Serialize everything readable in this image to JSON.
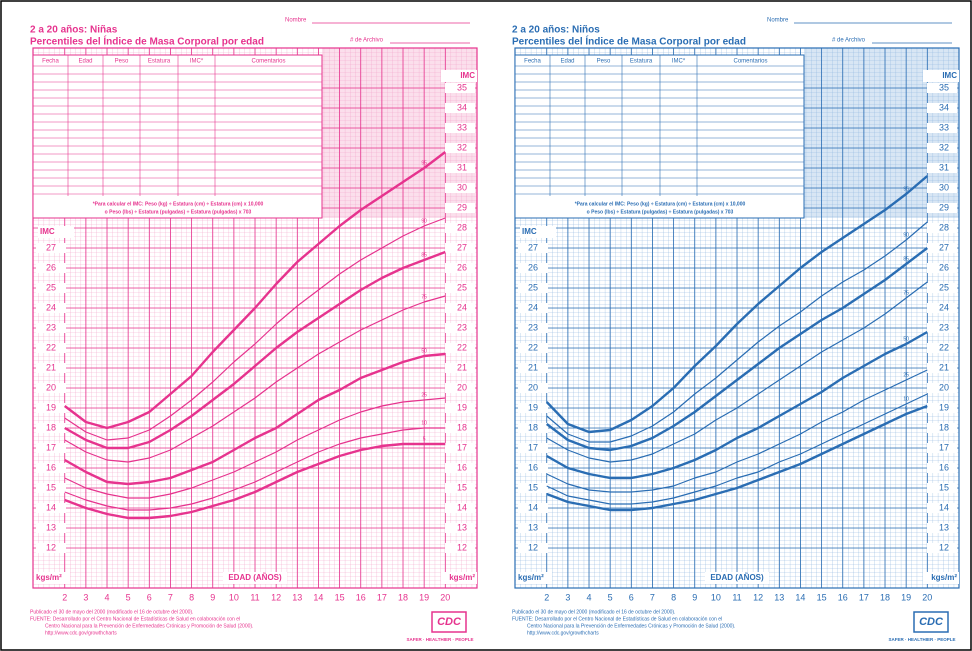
{
  "chart_data": [
    {
      "type": "line",
      "title": "2 a 20 años: Niñas",
      "subtitle": "Percentiles del Índice de Masa Corporal por edad",
      "name_field": "Nombre",
      "file_field": "# de Archivo",
      "table_headers": [
        "Fecha",
        "Edad",
        "Peso",
        "Estatura",
        "IMC*",
        "Comentarios"
      ],
      "formula": [
        "*Para calcular el IMC: Peso (kg) ÷ Estatura (cm) ÷ Estatura (cm) x 10,000",
        "o Peso (lbs) ÷ Estatura (pulgadas) ÷ Estatura (pulgadas) x 703"
      ],
      "y_label": "IMC",
      "y_unit": "kgs/m²",
      "x_label": "EDAD (AÑOS)",
      "footer": [
        "Publicado el 30 de mayo del 2000 (modificado el 16 de octubre del 2000).",
        "FUENTE: Desarrollado por el Centro Nacional de Estadísticas de Salud en colaboración con el",
        "Centro Nacional para la Prevención de Enfermedades Crónicas y Promoción de Salud (2000).",
        "http://www.cdc.gov/growthcharts"
      ],
      "logo": "CDC",
      "logo_tagline": "SAFER · HEALTHIER · PEOPLE",
      "color": "#e6338e",
      "grid_color": "#f3a3c9",
      "x": [
        2,
        3,
        4,
        5,
        6,
        7,
        8,
        9,
        10,
        11,
        12,
        13,
        14,
        15,
        16,
        17,
        18,
        19,
        20
      ],
      "xlim": [
        0.5,
        21.5
      ],
      "xticks": [
        2,
        3,
        4,
        5,
        6,
        7,
        8,
        9,
        10,
        11,
        12,
        13,
        14,
        15,
        16,
        17,
        18,
        19,
        20
      ],
      "ylim": [
        10,
        37
      ],
      "yticks": [
        12,
        13,
        14,
        15,
        16,
        17,
        18,
        19,
        20,
        21,
        22,
        23,
        24,
        25,
        26,
        27,
        28,
        29,
        30,
        31,
        32,
        33,
        34,
        35
      ],
      "series": [
        {
          "name": "95",
          "width": 2.4,
          "values": [
            19.1,
            18.3,
            18.0,
            18.3,
            18.8,
            19.7,
            20.6,
            21.8,
            22.9,
            24.0,
            25.2,
            26.3,
            27.2,
            28.1,
            28.9,
            29.6,
            30.3,
            31.0,
            31.8
          ]
        },
        {
          "name": "90",
          "width": 1.2,
          "values": [
            18.5,
            17.8,
            17.4,
            17.5,
            17.9,
            18.6,
            19.4,
            20.3,
            21.3,
            22.2,
            23.2,
            24.1,
            24.9,
            25.7,
            26.4,
            27.0,
            27.6,
            28.1,
            28.5
          ]
        },
        {
          "name": "85",
          "width": 2.4,
          "values": [
            18.0,
            17.4,
            17.0,
            17.0,
            17.3,
            17.9,
            18.6,
            19.4,
            20.2,
            21.1,
            22.0,
            22.8,
            23.5,
            24.2,
            24.9,
            25.5,
            26.0,
            26.4,
            26.8
          ]
        },
        {
          "name": "75",
          "width": 1.2,
          "values": [
            17.4,
            16.8,
            16.4,
            16.3,
            16.5,
            16.9,
            17.5,
            18.1,
            18.8,
            19.5,
            20.3,
            21.0,
            21.7,
            22.3,
            22.9,
            23.4,
            23.9,
            24.3,
            24.6
          ]
        },
        {
          "name": "50",
          "width": 2.4,
          "values": [
            16.4,
            15.8,
            15.3,
            15.2,
            15.3,
            15.5,
            15.9,
            16.3,
            16.9,
            17.5,
            18.0,
            18.7,
            19.4,
            19.9,
            20.5,
            20.9,
            21.3,
            21.6,
            21.7
          ]
        },
        {
          "name": "25",
          "width": 1.2,
          "values": [
            15.5,
            15.0,
            14.7,
            14.5,
            14.5,
            14.7,
            15.0,
            15.4,
            15.8,
            16.3,
            16.8,
            17.4,
            17.9,
            18.4,
            18.8,
            19.1,
            19.3,
            19.4,
            19.5
          ]
        },
        {
          "name": "10",
          "width": 1.2,
          "values": [
            14.8,
            14.4,
            14.1,
            13.9,
            13.9,
            14.0,
            14.2,
            14.5,
            14.9,
            15.3,
            15.8,
            16.3,
            16.8,
            17.2,
            17.5,
            17.7,
            17.9,
            18.0,
            18.0
          ]
        },
        {
          "name": "5",
          "width": 2.4,
          "values": [
            14.4,
            14.0,
            13.7,
            13.5,
            13.5,
            13.6,
            13.8,
            14.1,
            14.4,
            14.8,
            15.3,
            15.8,
            16.2,
            16.6,
            16.9,
            17.1,
            17.2,
            17.2,
            17.2
          ]
        }
      ]
    },
    {
      "type": "line",
      "title": "2 a 20 años: Niños",
      "subtitle": "Percentiles del Índice de Masa Corporal por edad",
      "name_field": "Nombre",
      "file_field": "# de Archivo",
      "table_headers": [
        "Fecha",
        "Edad",
        "Peso",
        "Estatura",
        "IMC*",
        "Comentarios"
      ],
      "formula": [
        "*Para calcular el IMC: Peso (kg) ÷ Estatura (cm) ÷ Estatura (cm) x 10,000",
        "o Peso (lbs) ÷ Estatura (pulgadas) ÷ Estatura (pulgadas) x 703"
      ],
      "y_label": "IMC",
      "y_unit": "kgs/m²",
      "x_label": "EDAD (AÑOS)",
      "footer": [
        "Publicado el 30 de mayo del 2000 (modificado el 16 de octubre del 2000).",
        "FUENTE: Desarrollado por el Centro Nacional de Estadísticas de Salud en colaboración con el",
        "Centro Nacional para la Prevención de Enfermedades Crónicas y Promoción de Salud (2000).",
        "http://www.cdc.gov/growthcharts"
      ],
      "logo": "CDC",
      "logo_tagline": "SAFER · HEALTHIER · PEOPLE",
      "color": "#2a6db3",
      "grid_color": "#8fb6df",
      "x": [
        2,
        3,
        4,
        5,
        6,
        7,
        8,
        9,
        10,
        11,
        12,
        13,
        14,
        15,
        16,
        17,
        18,
        19,
        20
      ],
      "xlim": [
        0.5,
        21.5
      ],
      "xticks": [
        2,
        3,
        4,
        5,
        6,
        7,
        8,
        9,
        10,
        11,
        12,
        13,
        14,
        15,
        16,
        17,
        18,
        19,
        20
      ],
      "ylim": [
        10,
        37
      ],
      "yticks": [
        12,
        13,
        14,
        15,
        16,
        17,
        18,
        19,
        20,
        21,
        22,
        23,
        24,
        25,
        26,
        27,
        28,
        29,
        30,
        31,
        32,
        33,
        34,
        35
      ],
      "series": [
        {
          "name": "95",
          "width": 2.4,
          "values": [
            19.3,
            18.2,
            17.8,
            17.9,
            18.4,
            19.1,
            20.0,
            21.1,
            22.1,
            23.2,
            24.2,
            25.1,
            26.0,
            26.8,
            27.5,
            28.2,
            28.9,
            29.7,
            30.6
          ]
        },
        {
          "name": "90",
          "width": 1.2,
          "values": [
            18.6,
            17.7,
            17.3,
            17.3,
            17.6,
            18.1,
            18.8,
            19.7,
            20.5,
            21.4,
            22.3,
            23.1,
            23.8,
            24.6,
            25.3,
            25.9,
            26.6,
            27.4,
            28.3
          ]
        },
        {
          "name": "85",
          "width": 2.4,
          "values": [
            18.2,
            17.4,
            17.0,
            16.9,
            17.1,
            17.5,
            18.1,
            18.8,
            19.6,
            20.4,
            21.2,
            22.0,
            22.7,
            23.4,
            24.0,
            24.7,
            25.4,
            26.2,
            27.0
          ]
        },
        {
          "name": "75",
          "width": 1.2,
          "values": [
            17.5,
            16.9,
            16.5,
            16.3,
            16.4,
            16.7,
            17.2,
            17.7,
            18.4,
            19.0,
            19.7,
            20.4,
            21.1,
            21.8,
            22.4,
            23.0,
            23.7,
            24.5,
            25.3
          ]
        },
        {
          "name": "50",
          "width": 2.4,
          "values": [
            16.6,
            16.0,
            15.7,
            15.5,
            15.5,
            15.7,
            16.0,
            16.4,
            16.9,
            17.5,
            18.0,
            18.6,
            19.2,
            19.8,
            20.5,
            21.1,
            21.7,
            22.2,
            22.8
          ]
        },
        {
          "name": "25",
          "width": 1.2,
          "values": [
            15.7,
            15.2,
            14.9,
            14.8,
            14.8,
            14.9,
            15.1,
            15.5,
            15.8,
            16.3,
            16.7,
            17.2,
            17.7,
            18.3,
            18.8,
            19.4,
            19.9,
            20.4,
            20.9
          ]
        },
        {
          "name": "10",
          "width": 1.2,
          "values": [
            15.1,
            14.6,
            14.4,
            14.2,
            14.2,
            14.3,
            14.5,
            14.8,
            15.1,
            15.5,
            15.8,
            16.3,
            16.7,
            17.2,
            17.7,
            18.2,
            18.7,
            19.2,
            19.7
          ]
        },
        {
          "name": "5",
          "width": 2.4,
          "values": [
            14.7,
            14.3,
            14.1,
            13.9,
            13.9,
            14.0,
            14.2,
            14.4,
            14.7,
            15.0,
            15.4,
            15.8,
            16.2,
            16.7,
            17.2,
            17.7,
            18.2,
            18.7,
            19.1
          ]
        }
      ]
    }
  ]
}
